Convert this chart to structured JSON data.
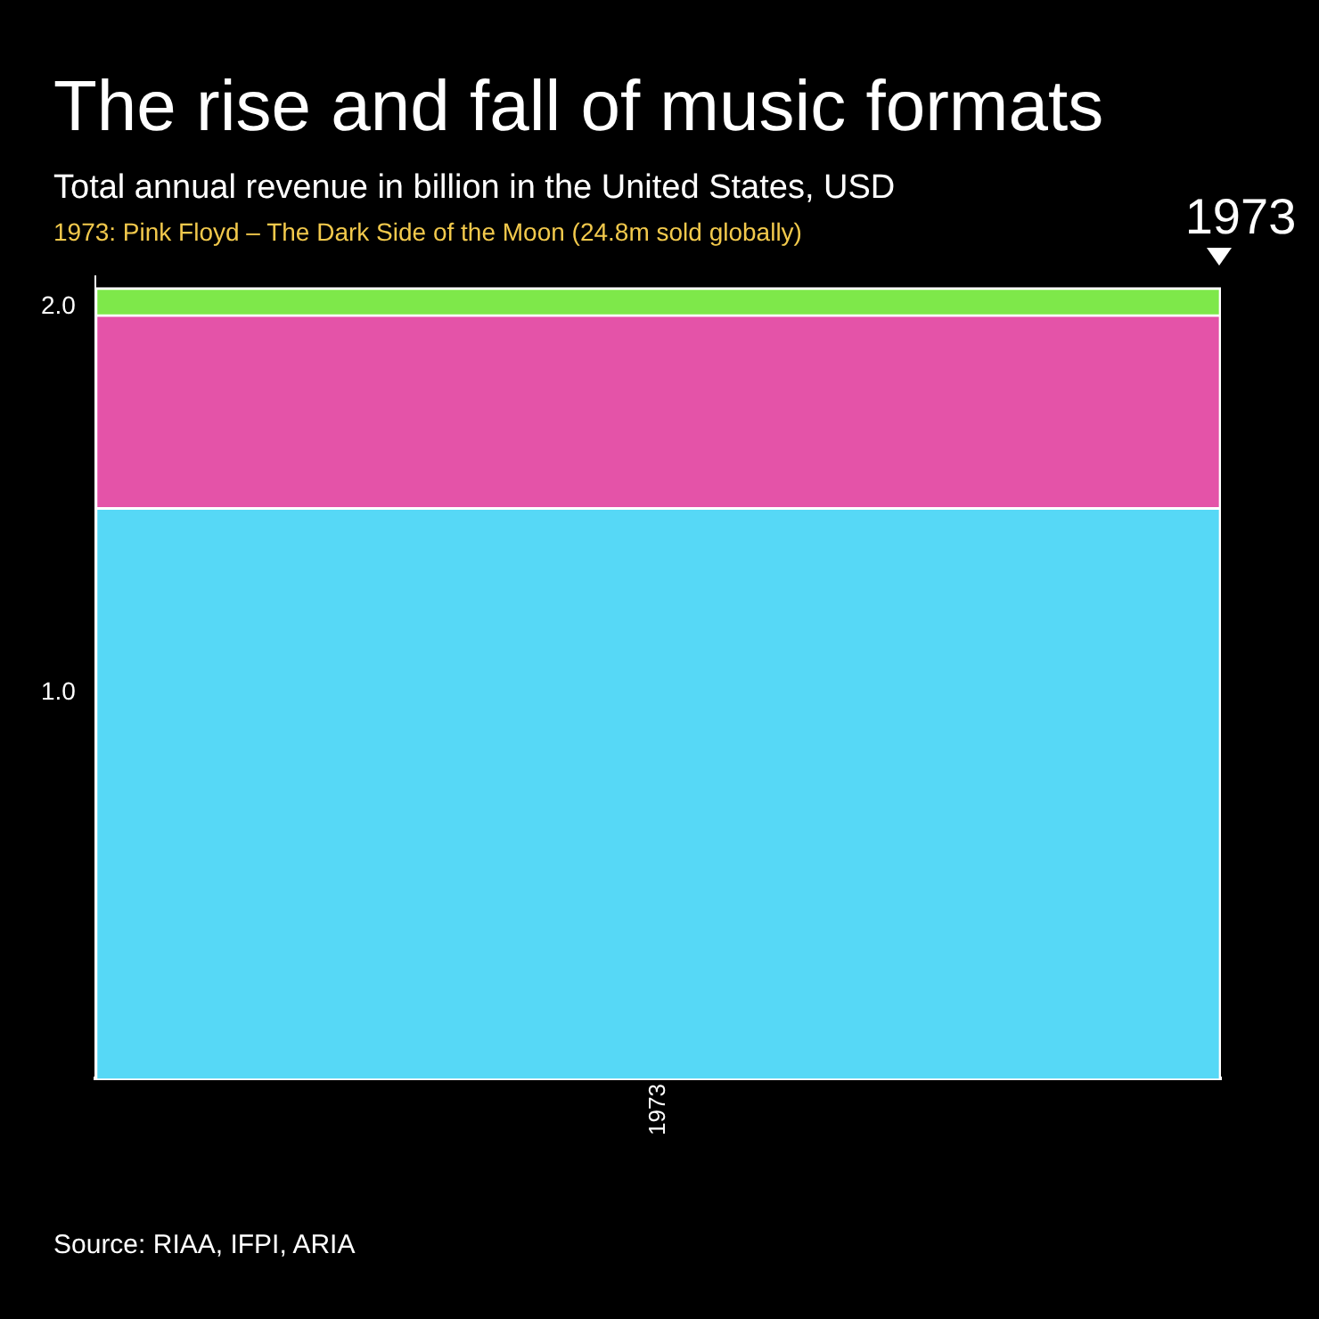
{
  "chart_data": {
    "type": "bar",
    "stacked": true,
    "title": "The rise and fall of music formats",
    "subtitle": "Total annual revenue in billion in the United States, USD",
    "annotations": [
      "1973: Pink Floyd – The Dark Side of the Moon (24.8m sold globally)",
      "Source: RIAA, IFPI, ARIA",
      "1973"
    ],
    "categories": [
      "1973"
    ],
    "series": [
      {
        "color": "#56d8f6",
        "values": [
          1.48
        ]
      },
      {
        "color": "#e453a8",
        "values": [
          0.5
        ]
      },
      {
        "color": "#7ee84a",
        "values": [
          0.07
        ]
      }
    ],
    "ylim": [
      0,
      2.08
    ],
    "yticks": [
      {
        "value": 1,
        "label": "1.0"
      },
      {
        "value": 2,
        "label": "2.0"
      }
    ],
    "grid": false,
    "legend": false
  }
}
